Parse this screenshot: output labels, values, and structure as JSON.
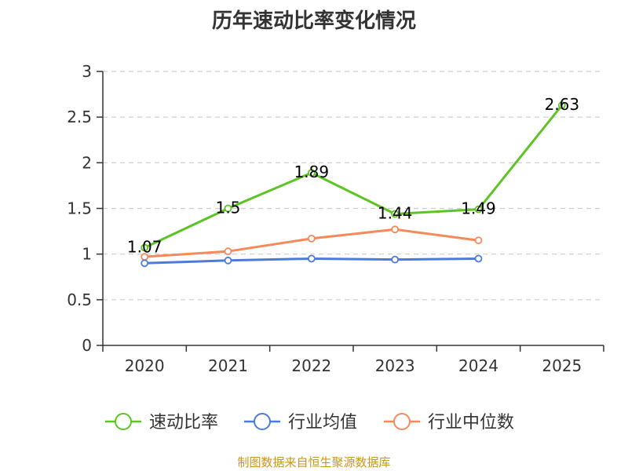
{
  "chart_data": {
    "type": "line",
    "title": "历年速动比率变化情况",
    "categories": [
      "2020",
      "2021",
      "2022",
      "2023",
      "2024",
      "2025"
    ],
    "y_ticks": [
      "0",
      "0.5",
      "1",
      "1.5",
      "2",
      "2.5",
      "3"
    ],
    "ylim": [
      0,
      3
    ],
    "grid": true,
    "legend_position": "bottom",
    "series": [
      {
        "name": "速动比率",
        "color": "#5cc424",
        "values": [
          1.07,
          1.5,
          1.89,
          1.44,
          1.49,
          2.63
        ],
        "data_labels": [
          "1.07",
          "1.5",
          "1.89",
          "1.44",
          "1.49",
          "2.63"
        ]
      },
      {
        "name": "行业均值",
        "color": "#4c7bde",
        "values": [
          0.9,
          0.93,
          0.95,
          0.94,
          0.95,
          null
        ]
      },
      {
        "name": "行业中位数",
        "color": "#f5895a",
        "values": [
          0.97,
          1.03,
          1.17,
          1.27,
          1.15,
          null
        ]
      }
    ]
  },
  "source": {
    "text": "制图数据来自恒生聚源数据库",
    "color": "#c8961e"
  }
}
